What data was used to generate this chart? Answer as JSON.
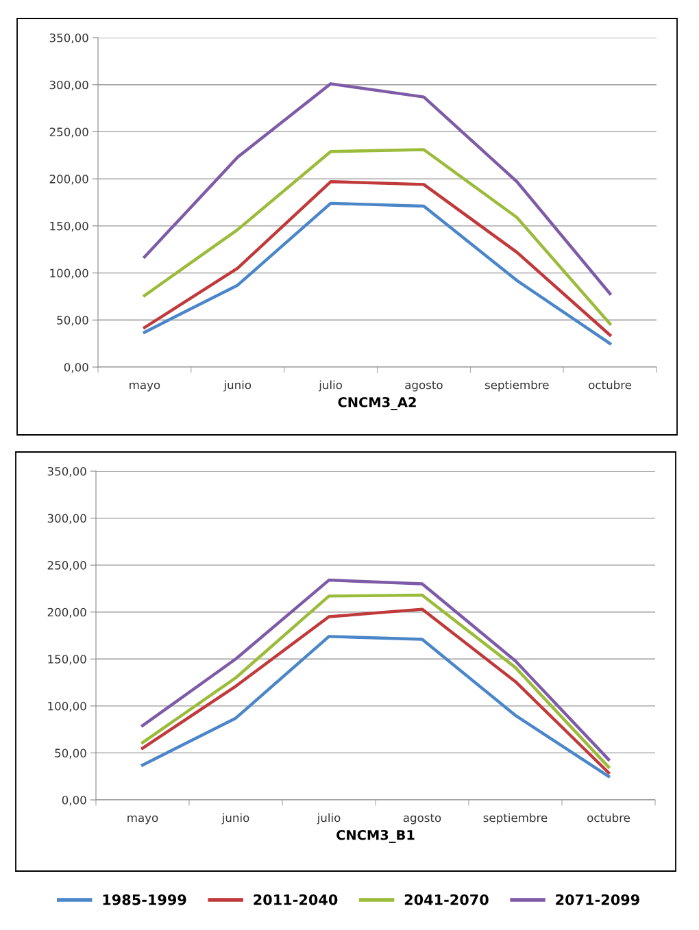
{
  "chart_data": [
    {
      "type": "line",
      "xlabel": "CNCM3_A2",
      "categories": [
        "mayo",
        "junio",
        "julio",
        "agosto",
        "septiembre",
        "octubre"
      ],
      "ylim": [
        0,
        350
      ],
      "yticks": [
        {
          "value": 0,
          "label": "0,00"
        },
        {
          "value": 50,
          "label": "50,00"
        },
        {
          "value": 100,
          "label": "100,00"
        },
        {
          "value": 150,
          "label": "150,00"
        },
        {
          "value": 200,
          "label": "200,00"
        },
        {
          "value": 250,
          "label": "250,00"
        },
        {
          "value": 300,
          "label": "300,00"
        },
        {
          "value": 350,
          "label": "350,00"
        }
      ],
      "grid": "y",
      "legend": false,
      "marker": "none",
      "line_style": "solid",
      "series": [
        {
          "color": "#4a86c8",
          "values": [
            37,
            87,
            174,
            171,
            92,
            25
          ]
        },
        {
          "color": "#c0393b",
          "values": [
            42,
            105,
            197,
            194,
            122,
            34
          ]
        },
        {
          "color": "#9bbb3b",
          "values": [
            76,
            146,
            229,
            231,
            159,
            46
          ]
        },
        {
          "color": "#7d5ba6",
          "values": [
            117,
            223,
            301,
            287,
            197,
            78
          ]
        }
      ]
    },
    {
      "type": "line",
      "xlabel": "CNCM3_B1",
      "categories": [
        "mayo",
        "junio",
        "julio",
        "agosto",
        "septiembre",
        "octubre"
      ],
      "ylim": [
        0,
        350
      ],
      "yticks": [
        {
          "value": 0,
          "label": "0,00"
        },
        {
          "value": 50,
          "label": "50,00"
        },
        {
          "value": 100,
          "label": "100,00"
        },
        {
          "value": 150,
          "label": "150,00"
        },
        {
          "value": 200,
          "label": "200,00"
        },
        {
          "value": 250,
          "label": "250,00"
        },
        {
          "value": 300,
          "label": "300,00"
        },
        {
          "value": 350,
          "label": "350,00"
        }
      ],
      "grid": "y",
      "legend": "bottom",
      "marker": "none",
      "line_style": "solid",
      "series": [
        {
          "name": "1985-1999",
          "color": "#4a86c8",
          "values": [
            37,
            87,
            174,
            171,
            90,
            25
          ]
        },
        {
          "name": "2011-2040",
          "color": "#c0393b",
          "values": [
            55,
            121,
            195,
            203,
            126,
            29
          ]
        },
        {
          "name": "2041-2070",
          "color": "#9bbb3b",
          "values": [
            61,
            130,
            217,
            218,
            141,
            35
          ]
        },
        {
          "name": "2071-2099",
          "color": "#7d5ba6",
          "values": [
            79,
            150,
            234,
            230,
            148,
            43
          ]
        }
      ]
    }
  ]
}
